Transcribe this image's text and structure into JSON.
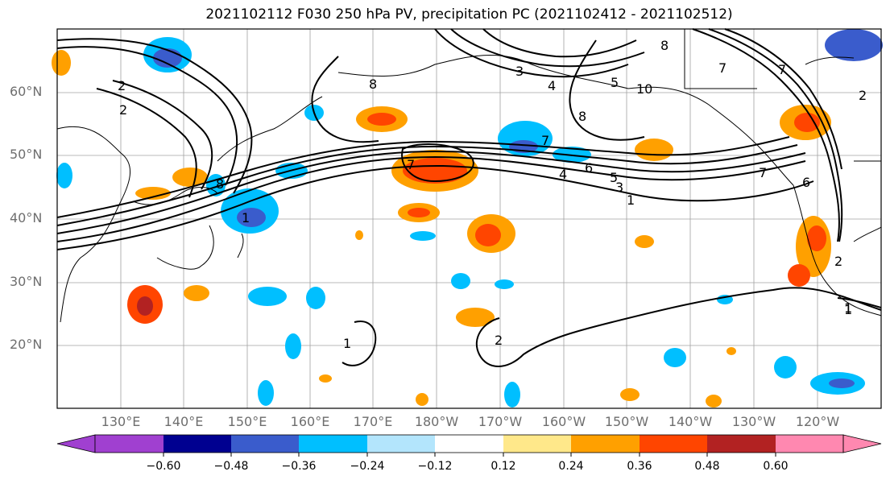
{
  "title": "2021102112 F030 250 hPa PV, precipitation PC (2021102412 - 2021102512)",
  "map": {
    "lat_labels": [
      "60°N",
      "50°N",
      "40°N",
      "30°N",
      "20°N"
    ],
    "lon_labels": [
      "130°E",
      "140°E",
      "150°E",
      "160°E",
      "170°E",
      "180°W",
      "170°W",
      "160°W",
      "150°W",
      "140°W",
      "130°W",
      "120°W"
    ],
    "contour_labels": [
      "2",
      "2",
      "8",
      "8",
      "3",
      "4",
      "5",
      "10",
      "8",
      "7",
      "7",
      "7",
      "4",
      "6",
      "5",
      "3",
      "1",
      "1",
      "1",
      "2",
      "2",
      "1",
      "6",
      "7",
      "8",
      "7",
      "1",
      "2"
    ]
  },
  "colorbar": {
    "ticks": [
      "−0.60",
      "−0.48",
      "−0.36",
      "−0.24",
      "−0.12",
      "0.12",
      "0.24",
      "0.36",
      "0.48",
      "0.60"
    ],
    "colors": [
      "#a040d0",
      "#000090",
      "#3a5ccc",
      "#00bfff",
      "#b3e5fc",
      "#ffffff",
      "#ffe88a",
      "#ffa000",
      "#ff4500",
      "#b22222",
      "#ff88b0"
    ]
  }
}
